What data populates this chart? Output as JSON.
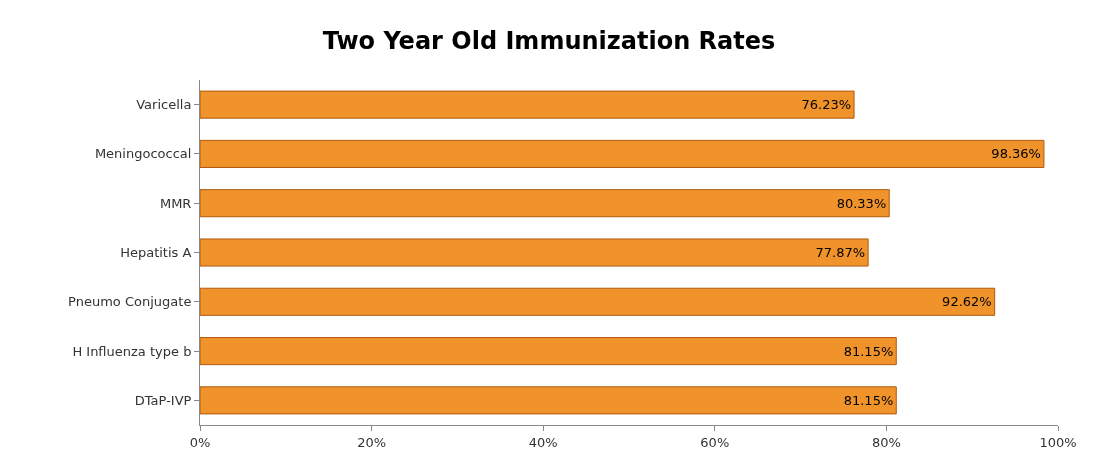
{
  "chart_data": {
    "type": "bar",
    "orientation": "horizontal",
    "title": "Two Year Old Immunization Rates",
    "categories": [
      "Varicella",
      "Meningococcal",
      "MMR",
      "Hepatitis A",
      "Pneumo Conjugate",
      "H Influenza type b",
      "DTaP-IVP"
    ],
    "values": [
      76.23,
      98.36,
      80.33,
      77.87,
      92.62,
      81.15,
      81.15
    ],
    "value_labels": [
      "76.23%",
      "98.36%",
      "80.33%",
      "77.87%",
      "92.62%",
      "81.15%",
      "81.15%"
    ],
    "color": "#f0932b",
    "xlim": [
      0,
      100
    ],
    "xticks": [
      {
        "value": 0,
        "label": "0%"
      },
      {
        "value": 20,
        "label": "20%"
      },
      {
        "value": 40,
        "label": "40%"
      },
      {
        "value": 60,
        "label": "60%"
      },
      {
        "value": 80,
        "label": "80%"
      },
      {
        "value": 100,
        "label": "100%"
      }
    ],
    "legend": false
  }
}
